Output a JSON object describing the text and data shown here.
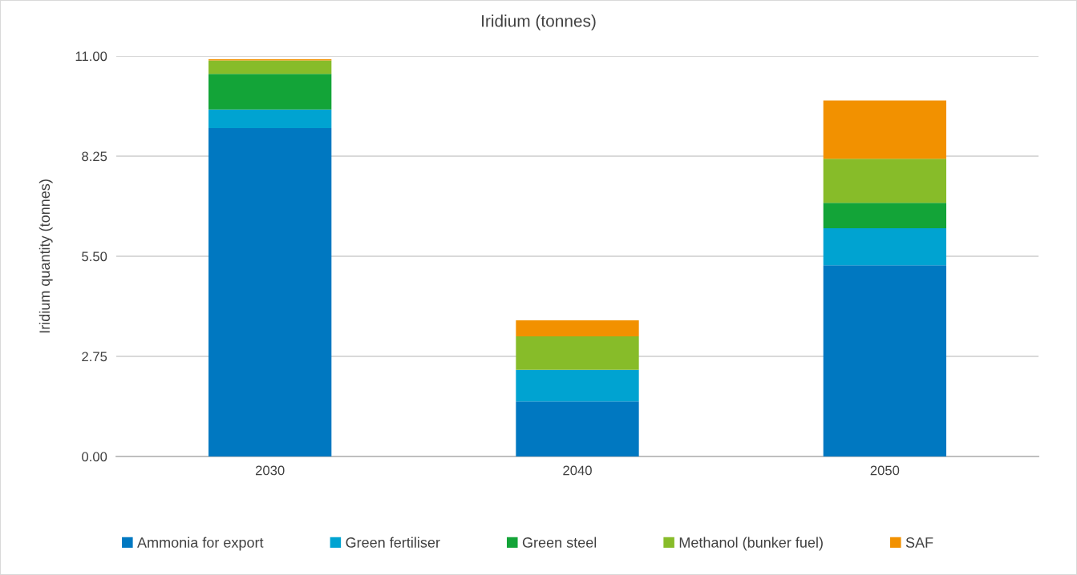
{
  "chart_data": {
    "type": "bar",
    "title": "Iridium (tonnes)",
    "ylabel": "Iridium quantity (tonnes)",
    "categories": [
      "2030",
      "2040",
      "2050"
    ],
    "stacked": true,
    "series": [
      {
        "name": "Ammonia for export",
        "color": "#0078c1",
        "values": [
          9.02,
          1.51,
          5.25
        ]
      },
      {
        "name": "Green fertiliser",
        "color": "#00a3d1",
        "values": [
          0.51,
          0.87,
          1.02
        ]
      },
      {
        "name": "Green steel",
        "color": "#13a438",
        "values": [
          0.98,
          0,
          0.7
        ]
      },
      {
        "name": "Methanol (bunker fuel)",
        "color": "#87bc29",
        "values": [
          0.37,
          0.92,
          1.21
        ]
      },
      {
        "name": "SAF",
        "color": "#f29100",
        "values": [
          0.03,
          0.44,
          1.6
        ]
      }
    ],
    "ylim": [
      0,
      11
    ],
    "yticks": [
      {
        "value": 0,
        "label": "0.00"
      },
      {
        "value": 2.75,
        "label": "2.75"
      },
      {
        "value": 5.5,
        "label": "5.50"
      },
      {
        "value": 8.25,
        "label": "8.25"
      },
      {
        "value": 11,
        "label": "11.00"
      }
    ],
    "grid": "y",
    "legend": "bottom"
  }
}
